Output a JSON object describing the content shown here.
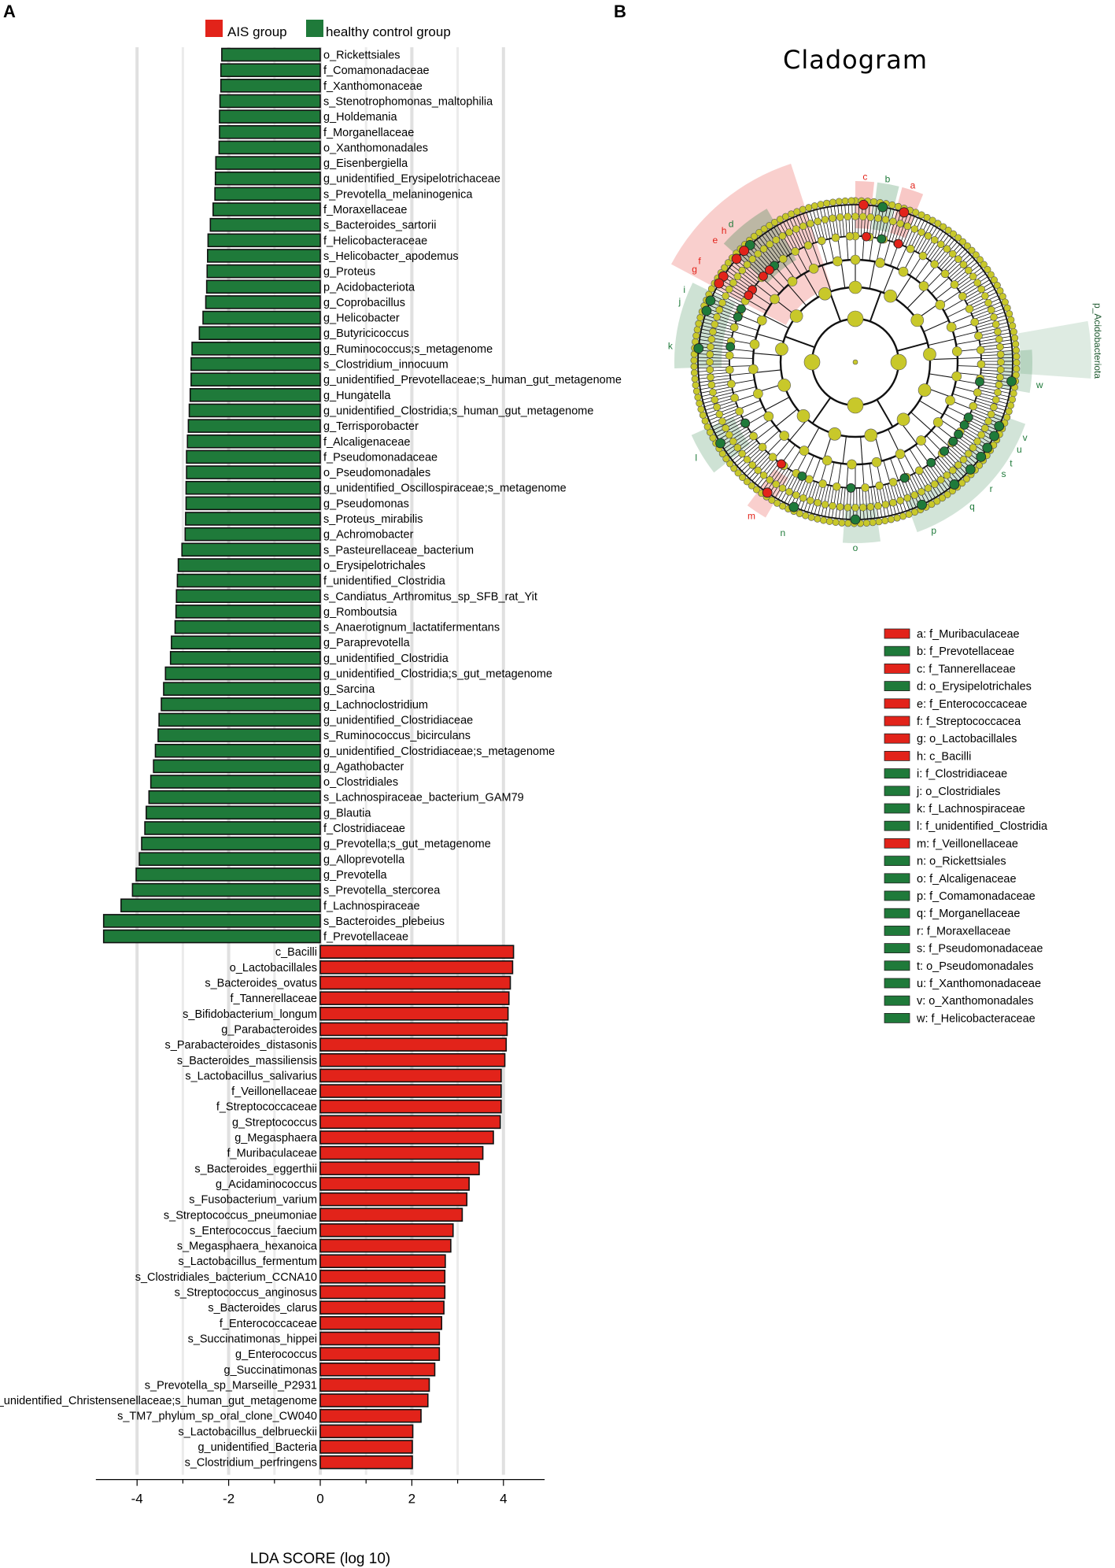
{
  "panel_a": {
    "letter": "A",
    "legend": [
      {
        "label": "AIS group",
        "color": "#e2231a"
      },
      {
        "label": "healthy control group",
        "color": "#1f7a3a"
      }
    ]
  },
  "panel_b": {
    "letter": "B",
    "title": "Cladogram",
    "outer_label": "p_Acidobacteriota",
    "key": [
      {
        "text": "a: f_Muribaculaceae",
        "group": "AIS"
      },
      {
        "text": "b: f_Prevotellaceae",
        "group": "HC"
      },
      {
        "text": "c: f_Tannerellaceae",
        "group": "AIS"
      },
      {
        "text": "d: o_Erysipelotrichales",
        "group": "HC"
      },
      {
        "text": "e: f_Enterococcaceae",
        "group": "AIS"
      },
      {
        "text": "f: f_Streptococcacea",
        "group": "AIS"
      },
      {
        "text": "g: o_Lactobacillales",
        "group": "AIS"
      },
      {
        "text": "h: c_Bacilli",
        "group": "AIS"
      },
      {
        "text": "i: f_Clostridiaceae",
        "group": "HC"
      },
      {
        "text": "j: o_Clostridiales",
        "group": "HC"
      },
      {
        "text": "k: f_Lachnospiraceae",
        "group": "HC"
      },
      {
        "text": "l: f_unidentified_Clostridia",
        "group": "HC"
      },
      {
        "text": "m: f_Veillonellaceae",
        "group": "AIS"
      },
      {
        "text": "n: o_Rickettsiales",
        "group": "HC"
      },
      {
        "text": "o: f_Alcaligenaceae",
        "group": "HC"
      },
      {
        "text": "p: f_Comamonadaceae",
        "group": "HC"
      },
      {
        "text": "q: f_Morganellaceae",
        "group": "HC"
      },
      {
        "text": "r: f_Moraxellaceae",
        "group": "HC"
      },
      {
        "text": "s: f_Pseudomonadaceae",
        "group": "HC"
      },
      {
        "text": "t: o_Pseudomonadales",
        "group": "HC"
      },
      {
        "text": "u: f_Xanthomonadaceae",
        "group": "HC"
      },
      {
        "text": "v: o_Xanthomonadales",
        "group": "HC"
      },
      {
        "text": "w: f_Helicobacteraceae",
        "group": "HC"
      }
    ],
    "clade_letters": [
      {
        "l": "a",
        "angle": 18,
        "group": "AIS"
      },
      {
        "l": "b",
        "angle": 10,
        "group": "HC"
      },
      {
        "l": "c",
        "angle": 3,
        "group": "AIS"
      },
      {
        "l": "d",
        "angle": -42,
        "group": "HC"
      },
      {
        "l": "e",
        "angle": -49,
        "group": "AIS"
      },
      {
        "l": "f",
        "angle": -57,
        "group": "AIS"
      },
      {
        "l": "g",
        "angle": -60,
        "group": "AIS"
      },
      {
        "l": "h",
        "angle": -45,
        "group": "AIS"
      },
      {
        "l": "i",
        "angle": -67,
        "group": "HC"
      },
      {
        "l": "j",
        "angle": -71,
        "group": "HC"
      },
      {
        "l": "k",
        "angle": -85,
        "group": "HC"
      },
      {
        "l": "l",
        "angle": -121,
        "group": "HC"
      },
      {
        "l": "m",
        "angle": -146,
        "group": "AIS"
      },
      {
        "l": "n",
        "angle": -157,
        "group": "HC"
      },
      {
        "l": "o",
        "angle": 180,
        "group": "HC"
      },
      {
        "l": "p",
        "angle": 155,
        "group": "HC"
      },
      {
        "l": "q",
        "angle": 141,
        "group": "HC"
      },
      {
        "l": "r",
        "angle": 133,
        "group": "HC"
      },
      {
        "l": "s",
        "angle": 127,
        "group": "HC"
      },
      {
        "l": "t",
        "angle": 123,
        "group": "HC"
      },
      {
        "l": "u",
        "angle": 118,
        "group": "HC"
      },
      {
        "l": "v",
        "angle": 114,
        "group": "HC"
      },
      {
        "l": "w",
        "angle": 97,
        "group": "HC"
      }
    ]
  },
  "colors": {
    "AIS": "#e2231a",
    "HC": "#1f7a3a",
    "node": "#c8c82a",
    "grid": "#e0e0e0"
  },
  "chart_data": {
    "type": "bar",
    "orientation": "horizontal",
    "title": "",
    "xlabel": "LDA SCORE (log 10)",
    "ylabel": "",
    "xlim": [
      -5,
      5
    ],
    "xticks": [
      -4,
      -2,
      0,
      2,
      4
    ],
    "grid": true,
    "legend_position": "top",
    "series": [
      {
        "name": "healthy control group",
        "group": "HC",
        "items": [
          {
            "label": "o_Rickettsiales",
            "value": -2.15
          },
          {
            "label": "f_Comamonadaceae",
            "value": -2.17
          },
          {
            "label": "f_Xanthomonaceae",
            "value": -2.17
          },
          {
            "label": "s_Stenotrophomonas_maltophilia",
            "value": -2.19
          },
          {
            "label": "g_Holdemania",
            "value": -2.2
          },
          {
            "label": "f_Morganellaceae",
            "value": -2.2
          },
          {
            "label": "o_Xanthomonadales",
            "value": -2.21
          },
          {
            "label": "g_Eisenbergiella",
            "value": -2.28
          },
          {
            "label": "g_unidentified_Erysipelotrichaceae",
            "value": -2.29
          },
          {
            "label": "s_Prevotella_melaninogenica",
            "value": -2.3
          },
          {
            "label": "f_Moraxellaceae",
            "value": -2.34
          },
          {
            "label": "s_Bacteroides_sartorii",
            "value": -2.4
          },
          {
            "label": "f_Helicobacteraceae",
            "value": -2.45
          },
          {
            "label": "s_Helicobacter_apodemus",
            "value": -2.46
          },
          {
            "label": "g_Proteus",
            "value": -2.47
          },
          {
            "label": "p_Acidobacteriota",
            "value": -2.48
          },
          {
            "label": "g_Coprobacillus",
            "value": -2.5
          },
          {
            "label": "g_Helicobacter",
            "value": -2.56
          },
          {
            "label": "g_Butyricicoccus",
            "value": -2.64
          },
          {
            "label": "g_Ruminococcus;s_metagenome",
            "value": -2.8
          },
          {
            "label": "s_Clostridium_innocuum",
            "value": -2.82
          },
          {
            "label": "g_unidentified_Prevotellaceae;s_human_gut_metagenome",
            "value": -2.82
          },
          {
            "label": "g_Hungatella",
            "value": -2.84
          },
          {
            "label": "g_unidentified_Clostridia;s_human_gut_metagenome",
            "value": -2.86
          },
          {
            "label": "g_Terrisporobacter",
            "value": -2.88
          },
          {
            "label": "f_Alcaligenaceae",
            "value": -2.9
          },
          {
            "label": "f_Pseudomonadaceae",
            "value": -2.92
          },
          {
            "label": "o_Pseudomonadales",
            "value": -2.92
          },
          {
            "label": "g_unidentified_Oscillospiraceae;s_metagenome",
            "value": -2.93
          },
          {
            "label": "g_Pseudomonas",
            "value": -2.93
          },
          {
            "label": "s_Proteus_mirabilis",
            "value": -2.94
          },
          {
            "label": "g_Achromobacter",
            "value": -2.95
          },
          {
            "label": "s_Pasteurellaceae_bacterium",
            "value": -3.02
          },
          {
            "label": "o_Erysipelotrichales",
            "value": -3.1
          },
          {
            "label": "f_unidentified_Clostridia",
            "value": -3.12
          },
          {
            "label": "s_Candiatus_Arthromitus_sp_SFB_rat_Yit",
            "value": -3.14
          },
          {
            "label": "g_Romboutsia",
            "value": -3.15
          },
          {
            "label": "s_Anaerotignum_lactatifermentans",
            "value": -3.17
          },
          {
            "label": "g_Paraprevotella",
            "value": -3.25
          },
          {
            "label": "g_unidentified_Clostridia",
            "value": -3.27
          },
          {
            "label": "g_unidentified_Clostridia;s_gut_metagenome",
            "value": -3.38
          },
          {
            "label": "g_Sarcina",
            "value": -3.42
          },
          {
            "label": "g_Lachnoclostridium",
            "value": -3.47
          },
          {
            "label": "g_unidentified_Clostridiaceae",
            "value": -3.52
          },
          {
            "label": "s_Ruminococcus_bicirculans",
            "value": -3.54
          },
          {
            "label": "g_unidentified_Clostridiaceae;s_metagenome",
            "value": -3.6
          },
          {
            "label": "g_Agathobacter",
            "value": -3.64
          },
          {
            "label": "o_Clostridiales",
            "value": -3.7
          },
          {
            "label": "s_Lachnospiraceae_bacterium_GAM79",
            "value": -3.74
          },
          {
            "label": "g_Blautia",
            "value": -3.8
          },
          {
            "label": "f_Clostridiaceae",
            "value": -3.83
          },
          {
            "label": "g_Prevotella;s_gut_metagenome",
            "value": -3.9
          },
          {
            "label": "g_Alloprevotella",
            "value": -3.95
          },
          {
            "label": "g_Prevotella",
            "value": -4.02
          },
          {
            "label": "s_Prevotella_stercorea",
            "value": -4.1
          },
          {
            "label": "f_Lachnospiraceae",
            "value": -4.35
          },
          {
            "label": "s_Bacteroides_plebeius",
            "value": -4.73
          },
          {
            "label": "f_Prevotellaceae",
            "value": -4.73
          }
        ]
      },
      {
        "name": "AIS group",
        "group": "AIS",
        "items": [
          {
            "label": "c_Bacilli",
            "value": 4.22
          },
          {
            "label": "o_Lactobacillales",
            "value": 4.2
          },
          {
            "label": "s_Bacteroides_ovatus",
            "value": 4.15
          },
          {
            "label": "f_Tannerellaceae",
            "value": 4.12
          },
          {
            "label": "s_Bifidobacterium_longum",
            "value": 4.1
          },
          {
            "label": "g_Parabacteroides",
            "value": 4.08
          },
          {
            "label": "s_Parabacteroides_distasonis",
            "value": 4.06
          },
          {
            "label": "s_Bacteroides_massiliensis",
            "value": 4.03
          },
          {
            "label": "s_Lactobacillus_salivarius",
            "value": 3.95
          },
          {
            "label": "f_Veillonellaceae",
            "value": 3.95
          },
          {
            "label": "f_Streptococcaceae",
            "value": 3.95
          },
          {
            "label": "g_Streptococcus",
            "value": 3.93
          },
          {
            "label": "g_Megasphaera",
            "value": 3.78
          },
          {
            "label": "f_Muribaculaceae",
            "value": 3.55
          },
          {
            "label": "s_Bacteroides_eggerthii",
            "value": 3.47
          },
          {
            "label": "g_Acidaminococcus",
            "value": 3.25
          },
          {
            "label": "s_Fusobacterium_varium",
            "value": 3.2
          },
          {
            "label": "s_Streptococcus_pneumoniae",
            "value": 3.1
          },
          {
            "label": "s_Enterococcus_faecium",
            "value": 2.9
          },
          {
            "label": "s_Megasphaera_hexanoica",
            "value": 2.85
          },
          {
            "label": "s_Lactobacillus_fermentum",
            "value": 2.73
          },
          {
            "label": "s_Clostridiales_bacterium_CCNA10",
            "value": 2.72
          },
          {
            "label": "s_Streptococcus_anginosus",
            "value": 2.72
          },
          {
            "label": "s_Bacteroides_clarus",
            "value": 2.7
          },
          {
            "label": "f_Enterococcaceae",
            "value": 2.65
          },
          {
            "label": "s_Succinatimonas_hippei",
            "value": 2.6
          },
          {
            "label": "g_Enterococcus",
            "value": 2.6
          },
          {
            "label": "g_Succinatimonas",
            "value": 2.5
          },
          {
            "label": "s_Prevotella_sp_Marseille_P2931",
            "value": 2.38
          },
          {
            "label": "g_unidentified_Christensenellaceae;s_human_gut_metagenome",
            "value": 2.35
          },
          {
            "label": "s_TM7_phylum_sp_oral_clone_CW040",
            "value": 2.2
          },
          {
            "label": "s_Lactobacillus_delbrueckii",
            "value": 2.02
          },
          {
            "label": "g_unidentified_Bacteria",
            "value": 2.01
          },
          {
            "label": "s_Clostridium_perfringens",
            "value": 2.01
          }
        ]
      }
    ]
  }
}
